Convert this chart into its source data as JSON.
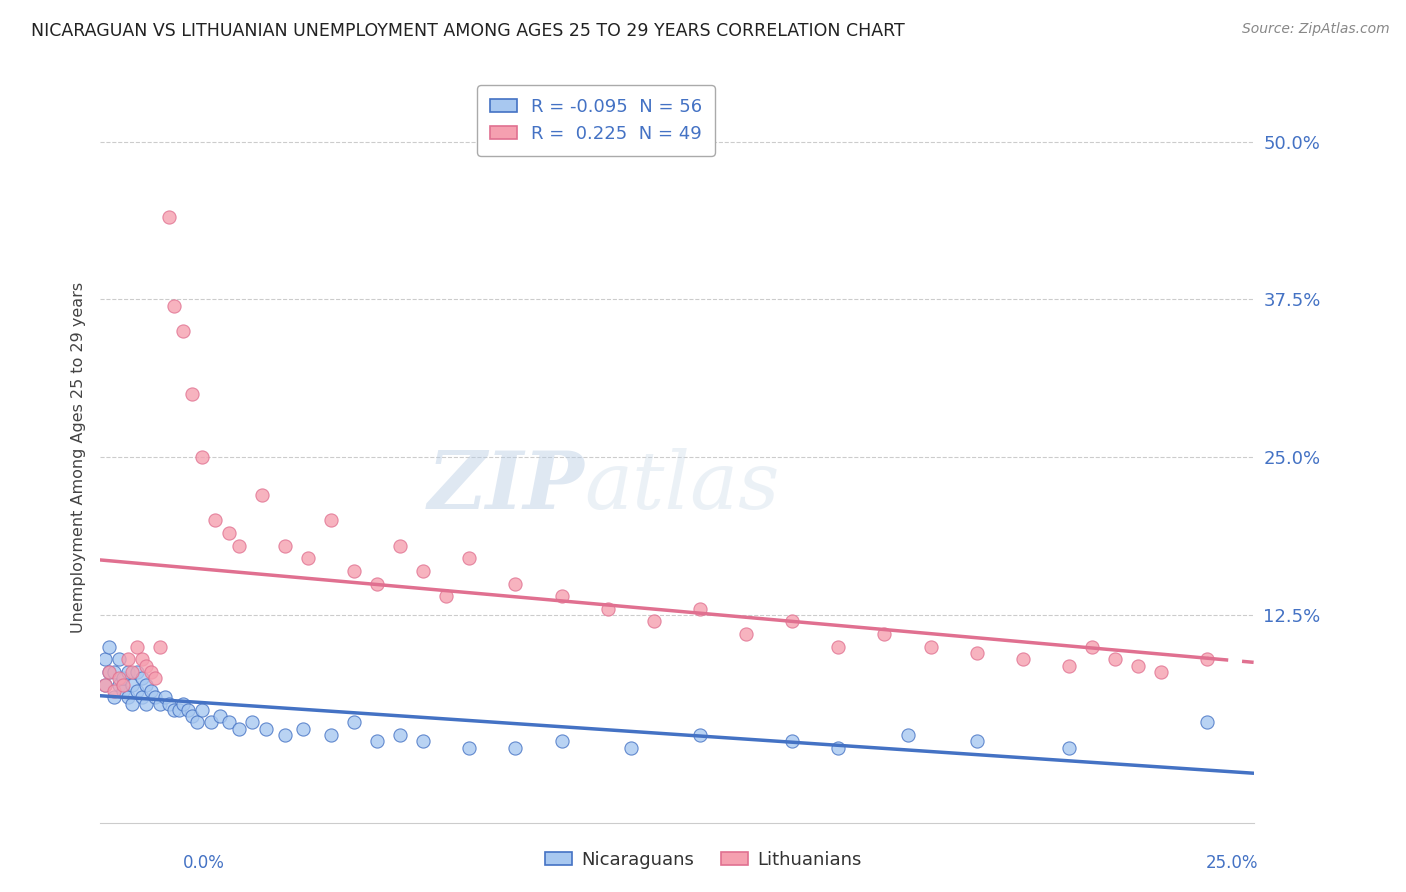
{
  "title": "NICARAGUAN VS LITHUANIAN UNEMPLOYMENT AMONG AGES 25 TO 29 YEARS CORRELATION CHART",
  "source": "Source: ZipAtlas.com",
  "ylabel": "Unemployment Among Ages 25 to 29 years",
  "right_yticks": [
    "50.0%",
    "37.5%",
    "25.0%",
    "12.5%"
  ],
  "right_ytick_vals": [
    0.5,
    0.375,
    0.25,
    0.125
  ],
  "xmin": 0.0,
  "xmax": 0.25,
  "ymin": -0.04,
  "ymax": 0.54,
  "r_nicaraguan": -0.095,
  "n_nicaraguan": 56,
  "r_lithuanian": 0.225,
  "n_lithuanian": 49,
  "legend_label_nicaraguan": "Nicaraguans",
  "legend_label_lithuanian": "Lithuanians",
  "color_nicaraguan": "#a8c8f0",
  "color_lithuanian": "#f5a0b0",
  "color_line_nicaraguan": "#4472c4",
  "color_line_lithuanian": "#e07090",
  "color_title": "#222222",
  "color_source": "#888888",
  "color_r_val": "#4472c4",
  "color_axes": "#4472c4",
  "background_color": "#ffffff",
  "watermark_text": "ZIPatlas",
  "nicaraguan_x": [
    0.001,
    0.001,
    0.002,
    0.002,
    0.003,
    0.003,
    0.004,
    0.004,
    0.005,
    0.005,
    0.006,
    0.006,
    0.007,
    0.007,
    0.008,
    0.008,
    0.009,
    0.009,
    0.01,
    0.01,
    0.011,
    0.012,
    0.013,
    0.014,
    0.015,
    0.016,
    0.017,
    0.018,
    0.019,
    0.02,
    0.021,
    0.022,
    0.024,
    0.026,
    0.028,
    0.03,
    0.033,
    0.036,
    0.04,
    0.044,
    0.05,
    0.055,
    0.06,
    0.065,
    0.07,
    0.08,
    0.09,
    0.1,
    0.115,
    0.13,
    0.15,
    0.16,
    0.175,
    0.19,
    0.21,
    0.24
  ],
  "nicaraguan_y": [
    0.07,
    0.09,
    0.08,
    0.1,
    0.06,
    0.08,
    0.07,
    0.09,
    0.065,
    0.075,
    0.06,
    0.08,
    0.055,
    0.07,
    0.065,
    0.08,
    0.06,
    0.075,
    0.055,
    0.07,
    0.065,
    0.06,
    0.055,
    0.06,
    0.055,
    0.05,
    0.05,
    0.055,
    0.05,
    0.045,
    0.04,
    0.05,
    0.04,
    0.045,
    0.04,
    0.035,
    0.04,
    0.035,
    0.03,
    0.035,
    0.03,
    0.04,
    0.025,
    0.03,
    0.025,
    0.02,
    0.02,
    0.025,
    0.02,
    0.03,
    0.025,
    0.02,
    0.03,
    0.025,
    0.02,
    0.04
  ],
  "lithuanian_x": [
    0.001,
    0.002,
    0.003,
    0.004,
    0.005,
    0.006,
    0.007,
    0.008,
    0.009,
    0.01,
    0.011,
    0.012,
    0.013,
    0.015,
    0.016,
    0.018,
    0.02,
    0.022,
    0.025,
    0.028,
    0.03,
    0.035,
    0.04,
    0.045,
    0.05,
    0.055,
    0.06,
    0.065,
    0.07,
    0.075,
    0.08,
    0.09,
    0.1,
    0.11,
    0.12,
    0.13,
    0.14,
    0.15,
    0.16,
    0.17,
    0.18,
    0.19,
    0.2,
    0.21,
    0.215,
    0.22,
    0.225,
    0.23,
    0.24
  ],
  "lithuanian_y": [
    0.07,
    0.08,
    0.065,
    0.075,
    0.07,
    0.09,
    0.08,
    0.1,
    0.09,
    0.085,
    0.08,
    0.075,
    0.1,
    0.44,
    0.37,
    0.35,
    0.3,
    0.25,
    0.2,
    0.19,
    0.18,
    0.22,
    0.18,
    0.17,
    0.2,
    0.16,
    0.15,
    0.18,
    0.16,
    0.14,
    0.17,
    0.15,
    0.14,
    0.13,
    0.12,
    0.13,
    0.11,
    0.12,
    0.1,
    0.11,
    0.1,
    0.095,
    0.09,
    0.085,
    0.1,
    0.09,
    0.085,
    0.08,
    0.09
  ]
}
